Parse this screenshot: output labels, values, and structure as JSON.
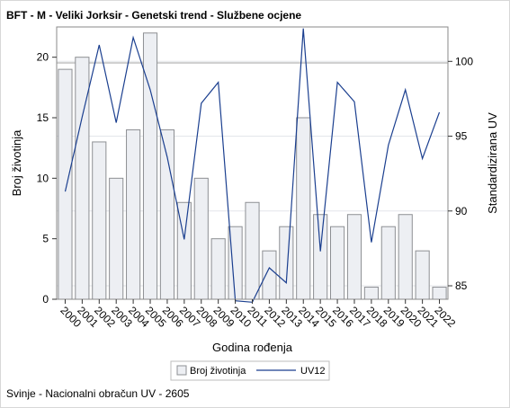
{
  "title": "BFT - M - Veliki Jorksir - Genetski trend - Službene ocjene",
  "footnote": "Svinje - Nacionalni obračun UV - 2605",
  "colors": {
    "bar_fill": "#edeff3",
    "bar_stroke": "#8d8f93",
    "line": "#1b3f8f",
    "grid": "#e3e6ea",
    "reference_line": "#a0a0a0"
  },
  "chart_data": {
    "type": "bar",
    "xlabel": "Godina rođenja",
    "ylabel": "Broj životinja",
    "y2label": "Standardizirana UV",
    "categories": [
      "2000",
      "2001",
      "2002",
      "2003",
      "2004",
      "2005",
      "2006",
      "2007",
      "2008",
      "2009",
      "2010",
      "2011",
      "2012",
      "2013",
      "2014",
      "2015",
      "2016",
      "2017",
      "2018",
      "2019",
      "2020",
      "2021",
      "2022"
    ],
    "ylim": [
      0,
      22.5
    ],
    "y_ticks": [
      0,
      5,
      10,
      15,
      20
    ],
    "y2lim": [
      84.1,
      102.3
    ],
    "y2_ticks": [
      85,
      90,
      95,
      100
    ],
    "reference_y2": 99.9,
    "grid": true,
    "legend_position": "bottom-center",
    "series": [
      {
        "name": "Broj životinja",
        "type": "bar",
        "axis": "left",
        "values": [
          19,
          20,
          13,
          10,
          14,
          22,
          14,
          8,
          10,
          5,
          6,
          8,
          4,
          6,
          15,
          7,
          6,
          7,
          1,
          6,
          7,
          4,
          1
        ]
      },
      {
        "name": "UV12",
        "type": "line",
        "axis": "right",
        "values": [
          91.3,
          96.3,
          101.1,
          95.9,
          101.6,
          98.1,
          93.6,
          88.1,
          97.2,
          98.6,
          84.0,
          83.9,
          86.2,
          85.2,
          102.2,
          87.3,
          98.6,
          97.3,
          87.9,
          94.4,
          98.1,
          93.5,
          96.6
        ]
      }
    ]
  }
}
